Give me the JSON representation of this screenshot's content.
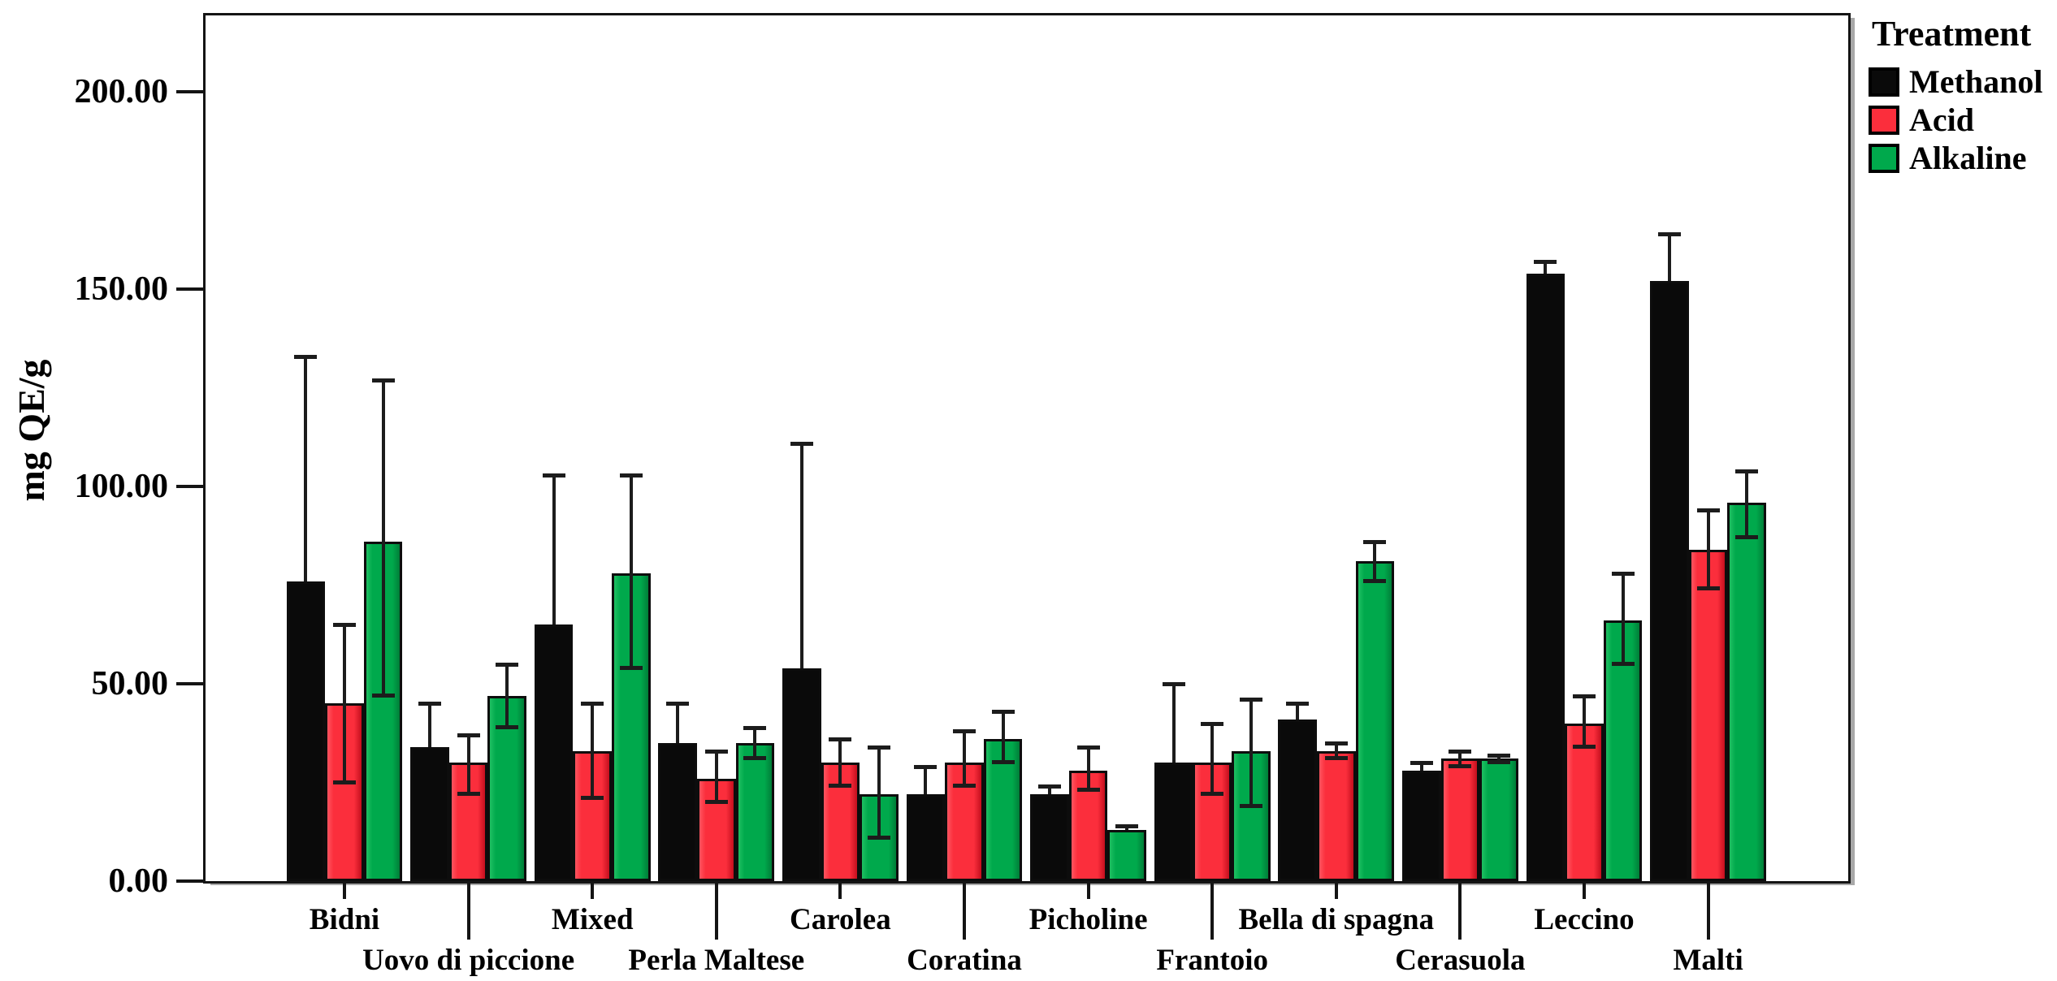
{
  "chart_data": {
    "type": "bar",
    "title": "",
    "ylabel": "mg QE/g",
    "xlabel": "",
    "legend_title": "Treatment",
    "legend_position": "top-right",
    "grid": false,
    "ylim": [
      0,
      219
    ],
    "ytick_labels": [
      "0.00",
      "50.00",
      "100.00",
      "150.00",
      "200.00"
    ],
    "ytick_values": [
      0,
      50,
      100,
      150,
      200
    ],
    "categories": [
      "Bidni",
      "Uovo di piccione",
      "Mixed",
      "Perla Maltese",
      "Carolea",
      "Coratina",
      "Picholine",
      "Frantoio",
      "Bella di spagna",
      "Cerasuola",
      "Leccino",
      "Malti"
    ],
    "series": [
      {
        "name": "Methanol",
        "color": "#0a0a0a",
        "values": [
          76,
          34,
          65,
          35,
          54,
          22,
          22,
          30,
          41,
          28,
          154,
          152
        ],
        "err_low": [
          null,
          null,
          null,
          null,
          null,
          null,
          null,
          null,
          null,
          null,
          null,
          null
        ],
        "err_high": [
          133,
          45,
          103,
          45,
          111,
          29,
          24,
          50,
          45,
          30,
          157,
          164
        ]
      },
      {
        "name": "Acid",
        "color": "#fb2e3c",
        "values": [
          45,
          30,
          33,
          26,
          30,
          30,
          28,
          30,
          33,
          31,
          40,
          84
        ],
        "err_low": [
          25,
          22,
          21,
          20,
          24,
          24,
          23,
          22,
          31,
          29,
          34,
          74
        ],
        "err_high": [
          65,
          37,
          45,
          33,
          36,
          38,
          34,
          40,
          35,
          33,
          47,
          94
        ]
      },
      {
        "name": "Alkaline",
        "color": "#00a94c",
        "values": [
          86,
          47,
          78,
          35,
          22,
          36,
          13,
          33,
          81,
          31,
          66,
          96
        ],
        "err_low": [
          47,
          39,
          54,
          31,
          11,
          30,
          null,
          19,
          76,
          30,
          55,
          87
        ],
        "err_high": [
          127,
          55,
          103,
          39,
          34,
          43,
          14,
          46,
          86,
          32,
          78,
          104
        ]
      }
    ]
  }
}
